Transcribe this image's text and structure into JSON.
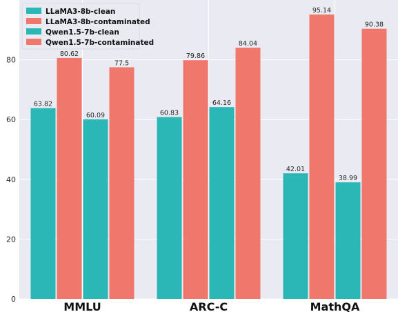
{
  "chart_data": {
    "type": "bar",
    "title": "",
    "xlabel": "",
    "ylabel": "",
    "categories": [
      "MMLU",
      "ARC-C",
      "MathQA"
    ],
    "ylim": [
      0,
      100
    ],
    "yticks": [
      0,
      20,
      40,
      60,
      80
    ],
    "grid": true,
    "legend_position": "top-left",
    "series": [
      {
        "name": "LLaMA3-8b-clean",
        "color": "#2ab7b6",
        "values": [
          63.82,
          60.83,
          42.01
        ],
        "labels": [
          "63.82",
          "60.83",
          "42.01"
        ]
      },
      {
        "name": "LLaMA3-8b-contaminated",
        "color": "#f0776c",
        "values": [
          80.62,
          79.86,
          95.14
        ],
        "labels": [
          "80.62",
          "79.86",
          "95.14"
        ]
      },
      {
        "name": "Qwen1.5-7b-clean",
        "color": "#2ab7b6",
        "values": [
          60.09,
          64.16,
          38.99
        ],
        "labels": [
          "60.09",
          "64.16",
          "38.99"
        ]
      },
      {
        "name": "Qwen1.5-7b-contaminated",
        "color": "#f0776c",
        "values": [
          77.5,
          84.04,
          90.38
        ],
        "labels": [
          "77.5",
          "84.04",
          "90.38"
        ]
      }
    ]
  }
}
